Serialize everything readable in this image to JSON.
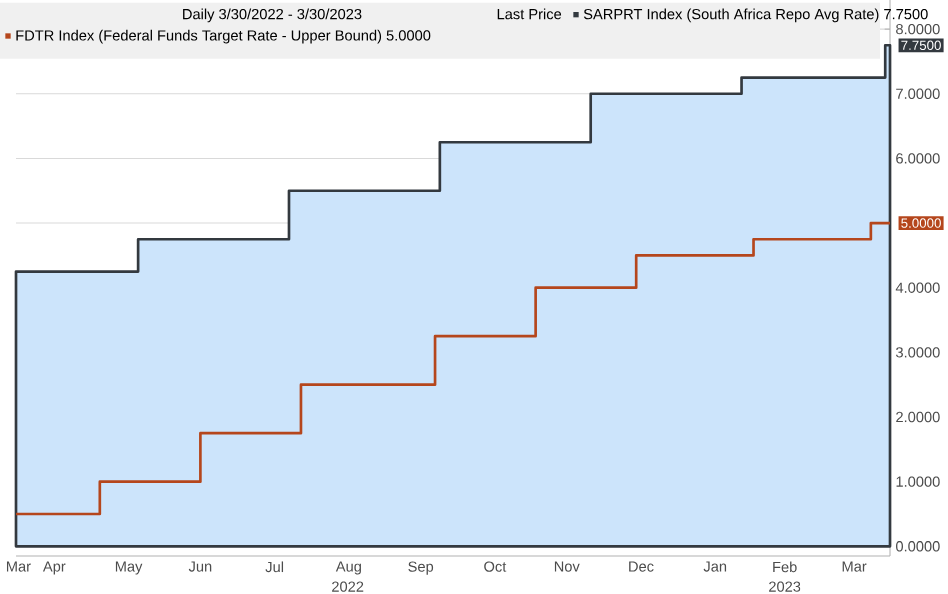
{
  "chart_data": {
    "type": "step",
    "subtitle": "Daily 3/30/2022 - 3/30/2023",
    "legend_title": "Last Price",
    "xlim": [
      "2022-03-30",
      "2023-03-30"
    ],
    "xticks": [
      {
        "value": "2022-03-31",
        "label": "Mar"
      },
      {
        "value": "2022-04-15",
        "label": "Apr"
      },
      {
        "value": "2022-05-16",
        "label": "May"
      },
      {
        "value": "2022-06-15",
        "label": "Jun"
      },
      {
        "value": "2022-07-16",
        "label": "Jul"
      },
      {
        "value": "2022-08-16",
        "label": "Aug"
      },
      {
        "value": "2022-09-15",
        "label": "Sep"
      },
      {
        "value": "2022-10-16",
        "label": "Oct"
      },
      {
        "value": "2022-11-15",
        "label": "Nov"
      },
      {
        "value": "2022-12-16",
        "label": "Dec"
      },
      {
        "value": "2023-01-16",
        "label": "Jan"
      },
      {
        "value": "2023-02-14",
        "label": "Feb"
      },
      {
        "value": "2023-03-15",
        "label": "Mar"
      }
    ],
    "ylim": [
      -0.15,
      8.45
    ],
    "yticks": [
      {
        "value": 0,
        "label": "0.0000"
      },
      {
        "value": 1,
        "label": "1.0000"
      },
      {
        "value": 2,
        "label": "2.0000"
      },
      {
        "value": 3,
        "label": "3.0000"
      },
      {
        "value": 4,
        "label": "4.0000"
      },
      {
        "value": 5,
        "label": null
      },
      {
        "value": 6,
        "label": "6.0000"
      },
      {
        "value": 7,
        "label": "7.0000"
      },
      {
        "value": 8,
        "label": "8.0000"
      }
    ],
    "grid": "y",
    "legend": "top left",
    "series": [
      {
        "name": "SARPRT Index (South Africa Repo Avg Rate) 7.7500",
        "type": "area",
        "color": "#33393f",
        "x": [
          "2022-03-30",
          "2022-05-20",
          "2022-07-22",
          "2022-09-23",
          "2022-11-25",
          "2023-01-27",
          "2023-03-28",
          "2023-03-30"
        ],
        "values": [
          4.25,
          4.75,
          5.5,
          6.25,
          7.0,
          7.25,
          7.75,
          7.75
        ]
      },
      {
        "name": "FDTR Index (Federal Funds Target Rate - Upper Bound) 5.0000",
        "color": "#b5461c",
        "x": [
          "2022-03-30",
          "2022-05-04",
          "2022-06-15",
          "2022-07-27",
          "2022-09-21",
          "2022-11-02",
          "2022-12-14",
          "2023-02-01",
          "2023-03-22",
          "2023-03-30"
        ],
        "values": [
          0.5,
          1.0,
          1.75,
          2.5,
          3.25,
          4.0,
          4.5,
          4.75,
          5.0,
          5.0
        ]
      }
    ],
    "annotations": [
      {
        "text": "7.7500",
        "x": "2023-03-30",
        "y": 7.75
      },
      {
        "text": "5.0000",
        "x": "2023-03-30",
        "y": 5.0
      },
      "2022",
      "2023"
    ]
  }
}
